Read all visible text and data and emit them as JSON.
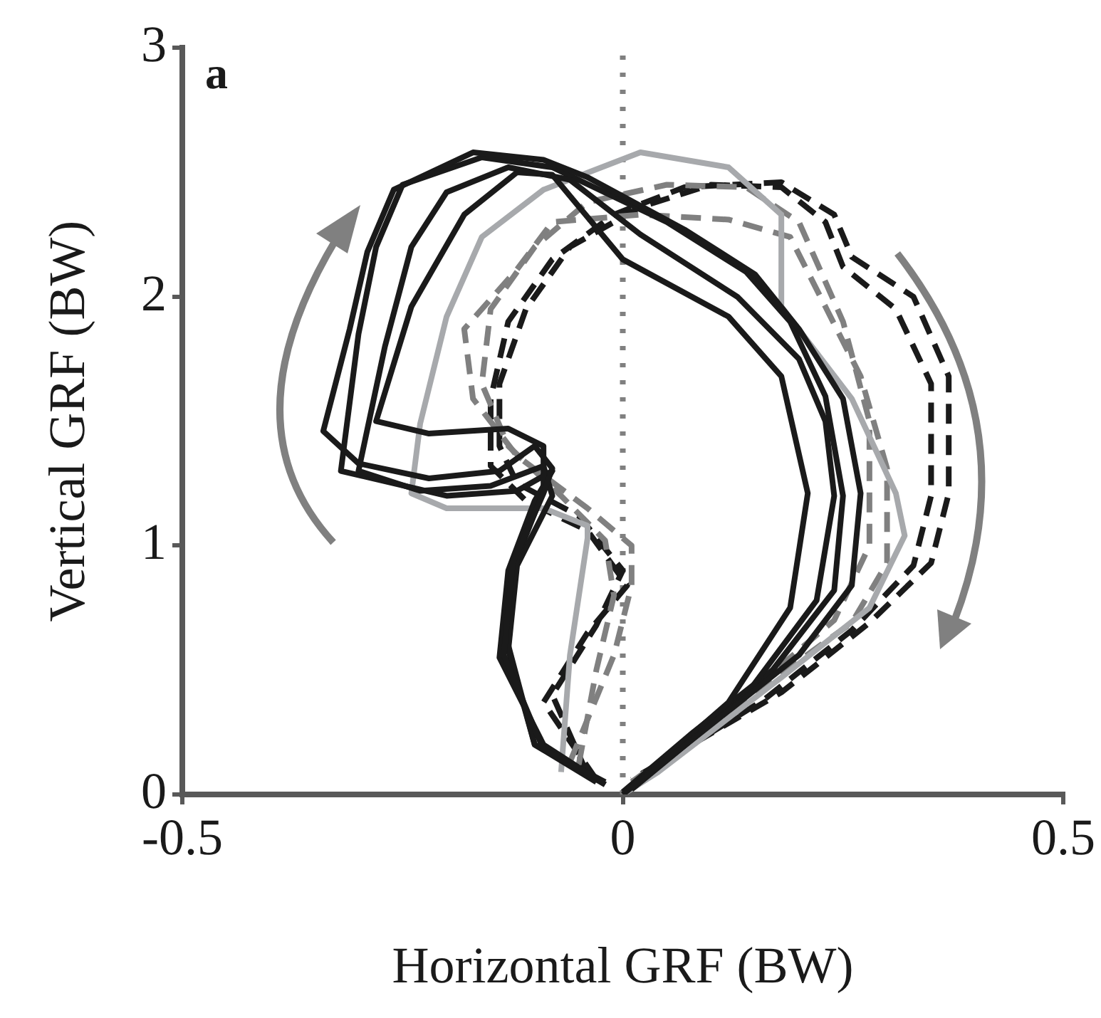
{
  "chart_data": {
    "type": "line",
    "xlabel": "Horizontal GRF (BW)",
    "ylabel": "Vertical GRF (BW)",
    "annotations": [
      "a"
    ],
    "xlim": [
      -0.5,
      0.5
    ],
    "xticks": [
      -0.5,
      0,
      0.5
    ],
    "ylim": [
      0,
      3
    ],
    "yticks": [
      0,
      1,
      2,
      3
    ],
    "ref_lines": [
      {
        "axis": "x",
        "value": 0,
        "color": "#808080",
        "line_style": "dotted"
      }
    ],
    "series": [
      {
        "color": "#1a1a1a",
        "line_style": "solid",
        "x": [
          -0.02,
          -0.09,
          -0.135,
          -0.125,
          -0.09,
          -0.08,
          -0.1,
          -0.14,
          -0.22,
          -0.3,
          -0.34,
          -0.31,
          -0.29,
          -0.26,
          -0.17,
          -0.09,
          -0.04,
          0.07,
          0.15,
          0.2,
          0.25,
          0.27,
          0.26,
          0.2,
          0.1,
          0.0
        ],
        "values": [
          0.05,
          0.18,
          0.56,
          0.93,
          1.21,
          1.31,
          1.4,
          1.3,
          1.27,
          1.33,
          1.46,
          1.87,
          2.18,
          2.43,
          2.58,
          2.55,
          2.48,
          2.27,
          2.09,
          1.87,
          1.59,
          1.21,
          0.84,
          0.56,
          0.28,
          0.0
        ]
      },
      {
        "color": "#1a1a1a",
        "line_style": "solid",
        "x": [
          -0.02,
          -0.1,
          -0.13,
          -0.12,
          -0.09,
          -0.09,
          -0.13,
          -0.22,
          -0.28,
          -0.24,
          -0.18,
          -0.12,
          -0.08,
          0.0,
          0.12,
          0.18,
          0.21,
          0.19,
          0.12,
          0.01
        ],
        "values": [
          0.04,
          0.2,
          0.6,
          0.95,
          1.22,
          1.4,
          1.47,
          1.45,
          1.5,
          1.96,
          2.33,
          2.5,
          2.49,
          2.15,
          1.92,
          1.68,
          1.21,
          0.75,
          0.37,
          0.03
        ]
      },
      {
        "color": "#1a1a1a",
        "line_style": "solid",
        "x": [
          -0.03,
          -0.1,
          -0.13,
          -0.12,
          -0.08,
          -0.09,
          -0.15,
          -0.23,
          -0.3,
          -0.27,
          -0.24,
          -0.2,
          -0.13,
          -0.06,
          0.02,
          0.13,
          0.2,
          0.23,
          0.24,
          0.22,
          0.14,
          0.01
        ],
        "values": [
          0.05,
          0.2,
          0.58,
          0.92,
          1.2,
          1.32,
          1.24,
          1.22,
          1.3,
          1.8,
          2.2,
          2.42,
          2.52,
          2.47,
          2.25,
          2.0,
          1.75,
          1.5,
          1.2,
          0.78,
          0.4,
          0.02
        ]
      },
      {
        "color": "#1a1a1a",
        "line_style": "solid",
        "x": [
          -0.02,
          -0.09,
          -0.14,
          -0.13,
          -0.1,
          -0.08,
          -0.12,
          -0.2,
          -0.32,
          -0.3,
          -0.28,
          -0.25,
          -0.16,
          -0.08,
          0.05,
          0.14,
          0.19,
          0.23,
          0.25,
          0.24,
          0.17,
          0.08,
          0.0
        ],
        "values": [
          0.04,
          0.2,
          0.55,
          0.9,
          1.18,
          1.3,
          1.22,
          1.2,
          1.3,
          1.85,
          2.2,
          2.45,
          2.56,
          2.52,
          2.3,
          2.1,
          1.9,
          1.6,
          1.2,
          0.82,
          0.5,
          0.25,
          0.01
        ]
      },
      {
        "color": "#a7a9ac",
        "line_style": "solid",
        "x": [
          -0.07,
          -0.06,
          -0.04,
          -0.04,
          -0.09,
          -0.2,
          -0.24,
          -0.23,
          -0.2,
          -0.16,
          -0.09,
          0.02,
          0.12,
          0.18,
          0.18,
          0.26,
          0.31,
          0.32,
          0.28,
          0.18,
          0.04,
          0.0
        ],
        "values": [
          0.09,
          0.56,
          1.03,
          1.08,
          1.15,
          1.15,
          1.21,
          1.49,
          1.92,
          2.24,
          2.43,
          2.58,
          2.52,
          2.33,
          1.96,
          1.59,
          1.21,
          1.04,
          0.75,
          0.47,
          0.09,
          0.0
        ]
      },
      {
        "color": "#808080",
        "line_style": "dashed",
        "x": [
          -0.06,
          -0.01,
          0.01,
          0.01,
          -0.04,
          -0.12,
          -0.17,
          -0.18,
          -0.12,
          -0.08,
          0.02,
          0.12,
          0.19,
          0.23,
          0.27,
          0.3,
          0.3,
          0.26,
          0.15,
          0.01
        ],
        "values": [
          0.13,
          0.56,
          0.84,
          1.0,
          1.15,
          1.36,
          1.59,
          1.87,
          2.11,
          2.3,
          2.33,
          2.31,
          2.24,
          1.96,
          1.68,
          1.31,
          0.93,
          0.69,
          0.41,
          0.05
        ]
      },
      {
        "color": "#808080",
        "line_style": "dashed",
        "x": [
          -0.05,
          -0.03,
          -0.01,
          -0.02,
          -0.07,
          -0.13,
          -0.16,
          -0.15,
          -0.1,
          -0.04,
          0.05,
          0.14,
          0.2,
          0.25,
          0.28,
          0.28,
          0.24,
          0.14,
          0.01
        ],
        "values": [
          0.12,
          0.5,
          0.8,
          1.02,
          1.2,
          1.4,
          1.65,
          1.95,
          2.2,
          2.38,
          2.45,
          2.44,
          2.3,
          1.9,
          1.5,
          1.0,
          0.7,
          0.4,
          0.04
        ]
      },
      {
        "color": "#1a1a1a",
        "line_style": "dashed",
        "x": [
          -0.03,
          -0.09,
          -0.04,
          0.005,
          -0.04,
          -0.11,
          -0.15,
          -0.15,
          -0.13,
          -0.08,
          -0.01,
          0.07,
          0.18,
          0.24,
          0.26,
          0.33,
          0.37,
          0.37,
          0.35,
          0.28,
          0.18,
          0.01
        ],
        "values": [
          0.06,
          0.37,
          0.65,
          0.84,
          1.06,
          1.18,
          1.32,
          1.59,
          1.9,
          2.15,
          2.33,
          2.44,
          2.46,
          2.33,
          2.16,
          2.0,
          1.68,
          1.21,
          0.93,
          0.69,
          0.41,
          0.06
        ]
      },
      {
        "color": "#1a1a1a",
        "line_style": "dashed",
        "x": [
          -0.04,
          -0.08,
          -0.03,
          0.0,
          -0.05,
          -0.12,
          -0.14,
          -0.14,
          -0.11,
          -0.06,
          0.02,
          0.1,
          0.18,
          0.23,
          0.25,
          0.31,
          0.35,
          0.35,
          0.33,
          0.26,
          0.16,
          0.01
        ],
        "values": [
          0.08,
          0.4,
          0.68,
          0.9,
          1.12,
          1.25,
          1.4,
          1.65,
          1.95,
          2.2,
          2.36,
          2.45,
          2.44,
          2.3,
          2.12,
          1.95,
          1.65,
          1.2,
          0.92,
          0.66,
          0.38,
          0.05
        ]
      }
    ]
  }
}
